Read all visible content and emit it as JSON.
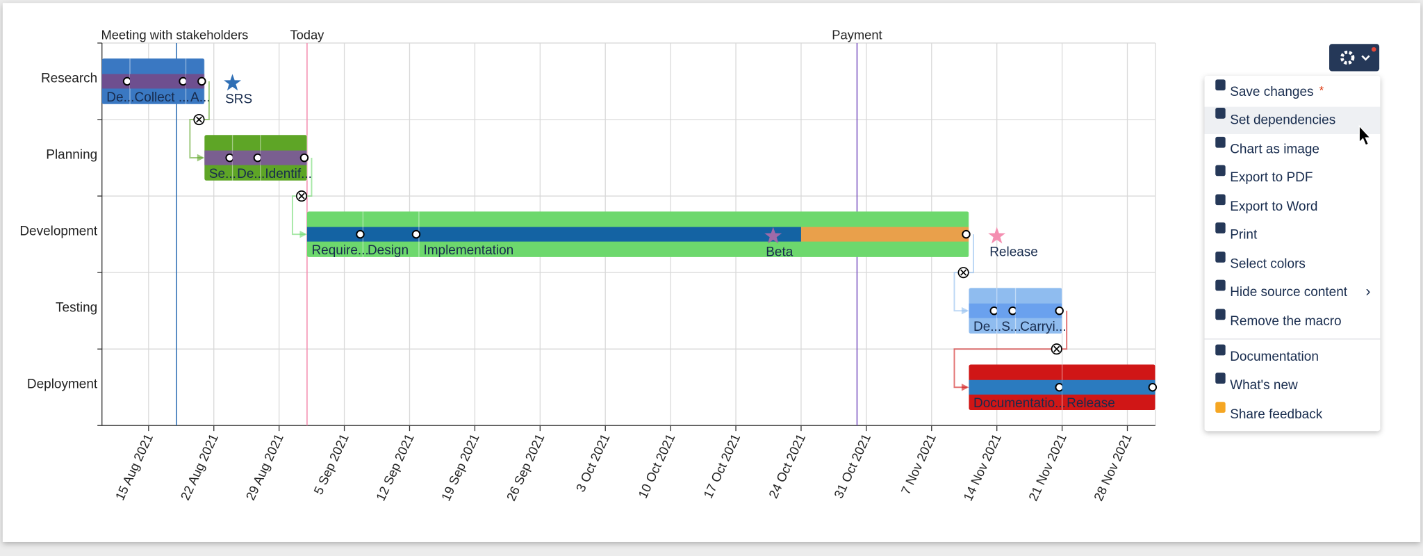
{
  "gantt": {
    "xlim": [
      "2021-08-10",
      "2021-12-01"
    ],
    "xticks": [
      {
        "date": "2021-08-15",
        "label": "15 Aug 2021"
      },
      {
        "date": "2021-08-22",
        "label": "22 Aug 2021"
      },
      {
        "date": "2021-08-29",
        "label": "29 Aug 2021"
      },
      {
        "date": "2021-09-05",
        "label": "5 Sep 2021"
      },
      {
        "date": "2021-09-12",
        "label": "12 Sep 2021"
      },
      {
        "date": "2021-09-19",
        "label": "19 Sep 2021"
      },
      {
        "date": "2021-09-26",
        "label": "26 Sep 2021"
      },
      {
        "date": "2021-10-03",
        "label": "3 Oct 2021"
      },
      {
        "date": "2021-10-10",
        "label": "10 Oct 2021"
      },
      {
        "date": "2021-10-17",
        "label": "17 Oct 2021"
      },
      {
        "date": "2021-10-24",
        "label": "24 Oct 2021"
      },
      {
        "date": "2021-10-31",
        "label": "31 Oct 2021"
      },
      {
        "date": "2021-11-07",
        "label": "7 Nov 2021"
      },
      {
        "date": "2021-11-14",
        "label": "14 Nov 2021"
      },
      {
        "date": "2021-11-21",
        "label": "21 Nov 2021"
      },
      {
        "date": "2021-11-28",
        "label": "28 Nov 2021"
      }
    ],
    "markers": [
      {
        "label": "Meeting with stakeholders",
        "date": "2021-08-18",
        "color": "#2f6fb5"
      },
      {
        "label": "Today",
        "date": "2021-09-01",
        "color": "#f48fb1"
      },
      {
        "label": "Payment",
        "date": "2021-10-30",
        "color": "#7e57c2"
      }
    ],
    "rows": [
      {
        "name": "Research",
        "color": "#3a78c2",
        "band": "#6e4f8f",
        "start": "2021-08-10",
        "end": "2021-08-21",
        "tasks": [
          {
            "label": "De...",
            "start": "2021-08-10",
            "end": "2021-08-13"
          },
          {
            "label": "Collect ...",
            "start": "2021-08-13",
            "end": "2021-08-19"
          },
          {
            "label": "A...",
            "start": "2021-08-19",
            "end": "2021-08-21"
          }
        ]
      },
      {
        "name": "Planning",
        "color": "#5ea526",
        "band": "#7a5f90",
        "start": "2021-08-21",
        "end": "2021-09-01",
        "tasks": [
          {
            "label": "Se...",
            "start": "2021-08-21",
            "end": "2021-08-24"
          },
          {
            "label": "De...",
            "start": "2021-08-24",
            "end": "2021-08-27"
          },
          {
            "label": "Identif...",
            "start": "2021-08-27",
            "end": "2021-09-01"
          }
        ]
      },
      {
        "name": "Development",
        "color": "#6dd86d",
        "band": "#1463a3",
        "band_until": "2021-10-24",
        "band_rest": "#e9a04b",
        "start": "2021-09-01",
        "end": "2021-11-11",
        "tasks": [
          {
            "label": "Require...",
            "start": "2021-09-01",
            "end": "2021-09-07"
          },
          {
            "label": "Design",
            "start": "2021-09-07",
            "end": "2021-09-13"
          },
          {
            "label": "Implementation",
            "start": "2021-09-13",
            "end": "2021-11-11"
          }
        ]
      },
      {
        "name": "Testing",
        "color": "#8fbcef",
        "band": "#6aa1ee",
        "start": "2021-11-11",
        "end": "2021-11-21",
        "tasks": [
          {
            "label": "De...",
            "start": "2021-11-11",
            "end": "2021-11-14"
          },
          {
            "label": "S...",
            "start": "2021-11-14",
            "end": "2021-11-16"
          },
          {
            "label": "Carryi...",
            "start": "2021-11-16",
            "end": "2021-11-21"
          }
        ]
      },
      {
        "name": "Deployment",
        "color": "#d01616",
        "band": "#2b7bbf",
        "start": "2021-11-11",
        "end": "2021-12-01",
        "tasks": [
          {
            "label": "Documentatio...",
            "start": "2021-11-11",
            "end": "2021-11-21"
          },
          {
            "label": "Release",
            "start": "2021-11-21",
            "end": "2021-12-01"
          }
        ]
      }
    ],
    "milestones": [
      {
        "label": "SRS",
        "date": "2021-08-24",
        "row": 0,
        "color": "#2f6fb5"
      },
      {
        "label": "Beta",
        "date": "2021-10-21",
        "row": 2,
        "color": "#a06aa8"
      },
      {
        "label": "Release",
        "date": "2021-11-14",
        "row": 2,
        "color": "#f48fb1"
      }
    ]
  },
  "menu": {
    "items": [
      {
        "label": "Save changes",
        "badge": "*"
      },
      {
        "label": "Set dependencies"
      },
      {
        "label": "Chart as image"
      },
      {
        "label": "Export to PDF"
      },
      {
        "label": "Export to Word"
      },
      {
        "label": "Print"
      },
      {
        "label": "Select colors"
      },
      {
        "label": "Hide source content",
        "submenu": "›"
      },
      {
        "label": "Remove the macro"
      },
      {
        "label": "Documentation"
      },
      {
        "label": "What's new"
      },
      {
        "label": "Share feedback"
      }
    ]
  }
}
